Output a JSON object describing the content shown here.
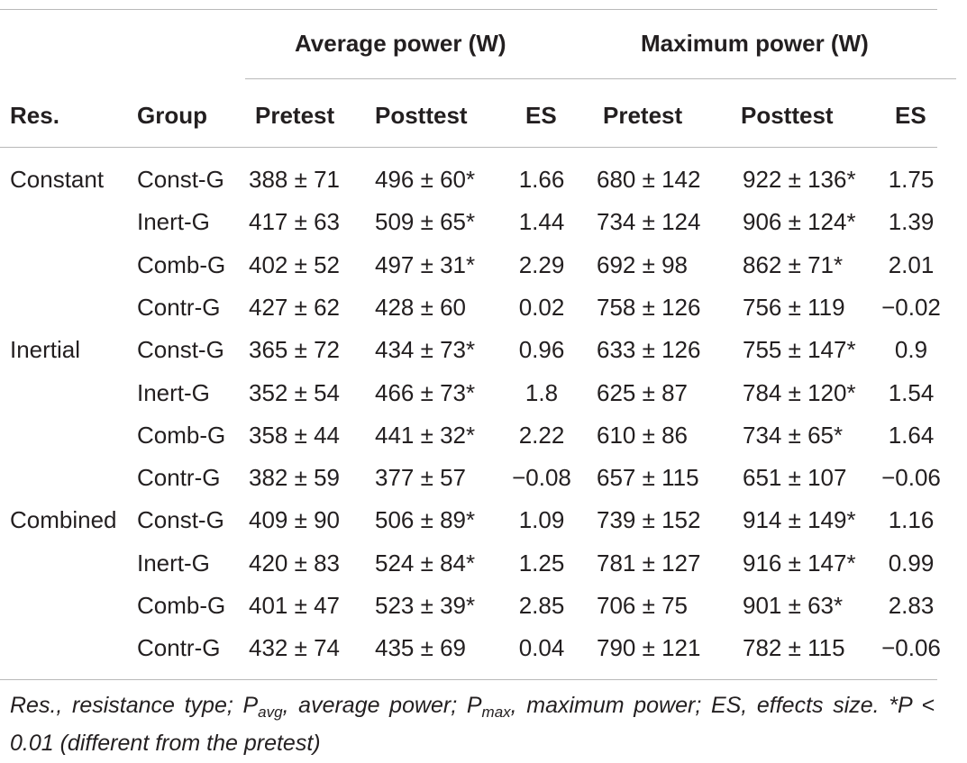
{
  "table": {
    "group_headers": [
      "Average power (W)",
      "Maximum power (W)"
    ],
    "column_headers": [
      "Res.",
      "Group",
      "Pretest",
      "Posttest",
      "ES",
      "Pretest",
      "Posttest",
      "ES"
    ],
    "rows": [
      {
        "res": "Constant",
        "group": "Const-G",
        "avg_pre": "388 ± 71",
        "avg_post": "496 ± 60*",
        "avg_es": "1.66",
        "max_pre": "680 ± 142",
        "max_post": "922 ± 136*",
        "max_es": "1.75"
      },
      {
        "res": "",
        "group": "Inert-G",
        "avg_pre": "417 ± 63",
        "avg_post": "509 ± 65*",
        "avg_es": "1.44",
        "max_pre": "734 ± 124",
        "max_post": "906 ± 124*",
        "max_es": "1.39"
      },
      {
        "res": "",
        "group": "Comb-G",
        "avg_pre": "402 ± 52",
        "avg_post": "497 ± 31*",
        "avg_es": "2.29",
        "max_pre": "692 ± 98",
        "max_post": "862 ± 71*",
        "max_es": "2.01"
      },
      {
        "res": "",
        "group": "Contr-G",
        "avg_pre": "427 ± 62",
        "avg_post": "428 ± 60",
        "avg_es": "0.02",
        "max_pre": "758 ± 126",
        "max_post": "756 ± 119",
        "max_es": "−0.02"
      },
      {
        "res": "Inertial",
        "group": "Const-G",
        "avg_pre": "365 ± 72",
        "avg_post": "434 ± 73*",
        "avg_es": "0.96",
        "max_pre": "633 ± 126",
        "max_post": "755 ± 147*",
        "max_es": "0.9"
      },
      {
        "res": "",
        "group": "Inert-G",
        "avg_pre": "352 ± 54",
        "avg_post": "466 ± 73*",
        "avg_es": "1.8",
        "max_pre": "625 ± 87",
        "max_post": "784 ± 120*",
        "max_es": "1.54"
      },
      {
        "res": "",
        "group": "Comb-G",
        "avg_pre": "358 ± 44",
        "avg_post": "441 ± 32*",
        "avg_es": "2.22",
        "max_pre": "610 ± 86",
        "max_post": "734 ± 65*",
        "max_es": "1.64"
      },
      {
        "res": "",
        "group": "Contr-G",
        "avg_pre": "382 ± 59",
        "avg_post": "377 ± 57",
        "avg_es": "−0.08",
        "max_pre": "657 ± 115",
        "max_post": "651 ± 107",
        "max_es": "−0.06"
      },
      {
        "res": "Combined",
        "group": "Const-G",
        "avg_pre": "409 ± 90",
        "avg_post": "506 ± 89*",
        "avg_es": "1.09",
        "max_pre": "739 ± 152",
        "max_post": "914 ± 149*",
        "max_es": "1.16"
      },
      {
        "res": "",
        "group": "Inert-G",
        "avg_pre": "420 ± 83",
        "avg_post": "524 ± 84*",
        "avg_es": "1.25",
        "max_pre": "781 ± 127",
        "max_post": "916 ± 147*",
        "max_es": "0.99"
      },
      {
        "res": "",
        "group": "Comb-G",
        "avg_pre": "401 ± 47",
        "avg_post": "523 ± 39*",
        "avg_es": "2.85",
        "max_pre": "706 ± 75",
        "max_post": "901 ± 63*",
        "max_es": "2.83"
      },
      {
        "res": "",
        "group": "Contr-G",
        "avg_pre": "432 ± 74",
        "avg_post": "435 ± 69",
        "avg_es": "0.04",
        "max_pre": "790 ± 121",
        "max_post": "782 ± 115",
        "max_es": "−0.06"
      }
    ]
  },
  "footnote": {
    "part1": "Res., resistance type; P",
    "sub1": "avg",
    "part2": ", average power; P",
    "sub2": "max",
    "part3": ", maximum power; ES, effects size. *P < 0.01 (different from the pretest)"
  }
}
